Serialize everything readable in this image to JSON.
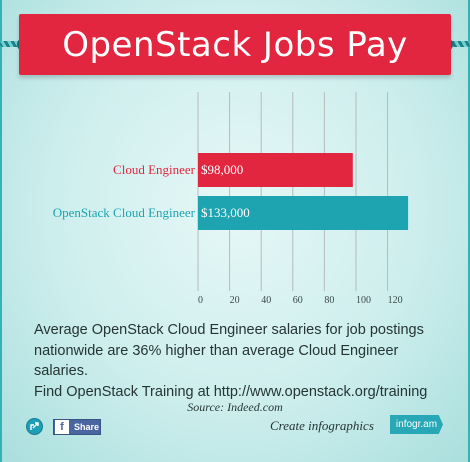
{
  "title": "OpenStack Jobs Pay",
  "colors": {
    "banner": "#e2263f",
    "cloud_engineer": "#e2263f",
    "openstack_cloud_engineer": "#1ea3b0",
    "grid": "#b5bcbc"
  },
  "chart_data": {
    "type": "bar",
    "orientation": "horizontal",
    "categories": [
      "Cloud Engineer",
      "OpenStack Cloud Engineer"
    ],
    "values": [
      98,
      133
    ],
    "data_labels": [
      "$98,000",
      "$133,000"
    ],
    "category_colors": [
      "#e2263f",
      "#1ea3b0"
    ],
    "xticks": [
      0,
      20,
      40,
      60,
      80,
      100,
      120
    ],
    "xlim": [
      0,
      138
    ],
    "grid": true,
    "title": "",
    "xlabel": "",
    "ylabel": ""
  },
  "description": {
    "line1": "Average OpenStack Cloud Engineer salaries for job postings",
    "line2": "nationwide are 36% higher than average Cloud Engineer salaries.",
    "line3": "Find OpenStack Training at http://www.openstack.org/training"
  },
  "source": "Source: Indeed.com",
  "footer": {
    "share_icon": "share-icon",
    "facebook_icon": "facebook-icon",
    "facebook_share": "Share",
    "create_link": "Create infographics",
    "logo": "infogr.am"
  }
}
